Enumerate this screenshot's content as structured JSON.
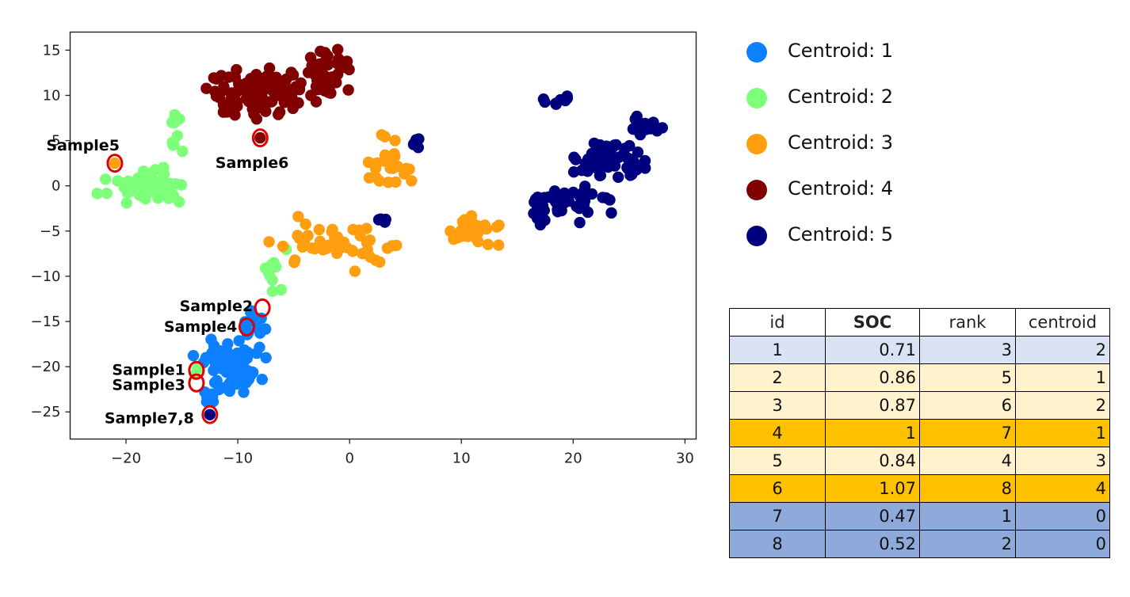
{
  "chart_data": {
    "type": "scatter",
    "title": "",
    "xlabel": "",
    "ylabel": "",
    "xlim": [
      -25,
      31
    ],
    "ylim": [
      -28,
      17
    ],
    "xticks": [
      -20,
      -10,
      0,
      10,
      20,
      30
    ],
    "yticks": [
      15,
      10,
      5,
      0,
      -5,
      -10,
      -15,
      -20,
      -25
    ],
    "grid": false,
    "legend_position": "right",
    "series": [
      {
        "name": "Centroid: 1",
        "color": "#0d80ff",
        "clusters": [
          {
            "center": [
              -10.5,
              -20
            ],
            "spread": [
              2.4,
              2.4
            ],
            "n": 70
          },
          {
            "center": [
              -9,
              -15.5
            ],
            "spread": [
              1.3,
              1.7
            ],
            "n": 14
          },
          {
            "center": [
              -12.5,
              -23.2
            ],
            "spread": [
              0.9,
              0.7
            ],
            "n": 8
          }
        ]
      },
      {
        "name": "Centroid: 2",
        "color": "#7dff7a",
        "clusters": [
          {
            "center": [
              -18,
              0
            ],
            "spread": [
              3.2,
              1.5
            ],
            "n": 60
          },
          {
            "center": [
              -15,
              5.5
            ],
            "spread": [
              0.9,
              2.2
            ],
            "n": 10
          },
          {
            "center": [
              -6.5,
              -10
            ],
            "spread": [
              1.4,
              2.2
            ],
            "n": 10
          },
          {
            "center": [
              -13.7,
              -21
            ],
            "spread": [
              0.3,
              0.7
            ],
            "n": 2
          }
        ]
      },
      {
        "name": "Centroid: 3",
        "color": "#ff9e0e",
        "clusters": [
          {
            "center": [
              -1,
              -6.5
            ],
            "spread": [
              4.5,
              2.2
            ],
            "n": 45
          },
          {
            "center": [
              3.5,
              2.5
            ],
            "spread": [
              2.2,
              2.5
            ],
            "n": 25
          },
          {
            "center": [
              11,
              -5
            ],
            "spread": [
              2.0,
              1.4
            ],
            "n": 30
          },
          {
            "center": [
              -21,
              2.5
            ],
            "spread": [
              0.1,
              0.1
            ],
            "n": 1
          }
        ]
      },
      {
        "name": "Centroid: 4",
        "color": "#800000",
        "clusters": [
          {
            "center": [
              -8.5,
              10
            ],
            "spread": [
              4,
              2.6
            ],
            "n": 100
          },
          {
            "center": [
              -2,
              12.5
            ],
            "spread": [
              2.2,
              2.4
            ],
            "n": 40
          },
          {
            "center": [
              -8,
              5.3
            ],
            "spread": [
              0.1,
              0.1
            ],
            "n": 1
          }
        ]
      },
      {
        "name": "Centroid: 5",
        "color": "#00007f",
        "clusters": [
          {
            "center": [
              19,
              -2
            ],
            "spread": [
              3.5,
              1.8
            ],
            "n": 45
          },
          {
            "center": [
              23.5,
              3
            ],
            "spread": [
              2.5,
              2
            ],
            "n": 60
          },
          {
            "center": [
              26.5,
              6.5
            ],
            "spread": [
              1.2,
              1.2
            ],
            "n": 18
          },
          {
            "center": [
              19,
              9.5
            ],
            "spread": [
              1.5,
              0.7
            ],
            "n": 8
          },
          {
            "center": [
              6,
              5
            ],
            "spread": [
              0.4,
              0.9
            ],
            "n": 5
          },
          {
            "center": [
              3,
              -3.8
            ],
            "spread": [
              0.6,
              0.3
            ],
            "n": 4
          },
          {
            "center": [
              -12.5,
              -25.3
            ],
            "spread": [
              0.1,
              0.1
            ],
            "n": 1
          }
        ]
      }
    ],
    "annotations": [
      {
        "label": "Sample5",
        "x": -21,
        "y": 2.5
      },
      {
        "label": "Sample6",
        "x": -8,
        "y": 5.3
      },
      {
        "label": "Sample2",
        "x": -7.8,
        "y": -13.5
      },
      {
        "label": "Sample4",
        "x": -9.2,
        "y": -15.6
      },
      {
        "label": "Sample1",
        "x": -13.7,
        "y": -20.4
      },
      {
        "label": "Sample3",
        "x": -13.7,
        "y": -21.8
      },
      {
        "label": "Sample7,8",
        "x": -12.5,
        "y": -25.3
      }
    ]
  },
  "table": {
    "headers": [
      "id",
      "SOC",
      "rank",
      "centroid"
    ],
    "rows": [
      {
        "id": "1",
        "soc": "0.71",
        "rank": "3",
        "centroid": "2",
        "bg": "#dae3f3"
      },
      {
        "id": "2",
        "soc": "0.86",
        "rank": "5",
        "centroid": "1",
        "bg": "#fff2cc"
      },
      {
        "id": "3",
        "soc": "0.87",
        "rank": "6",
        "centroid": "2",
        "bg": "#fff2cc"
      },
      {
        "id": "4",
        "soc": "1",
        "rank": "7",
        "centroid": "1",
        "bg": "#ffc000"
      },
      {
        "id": "5",
        "soc": "0.84",
        "rank": "4",
        "centroid": "3",
        "bg": "#fff2cc"
      },
      {
        "id": "6",
        "soc": "1.07",
        "rank": "8",
        "centroid": "4",
        "bg": "#ffc000"
      },
      {
        "id": "7",
        "soc": "0.47",
        "rank": "1",
        "centroid": "0",
        "bg": "#8eaadb"
      },
      {
        "id": "8",
        "soc": "0.52",
        "rank": "2",
        "centroid": "0",
        "bg": "#8eaadb"
      }
    ]
  }
}
